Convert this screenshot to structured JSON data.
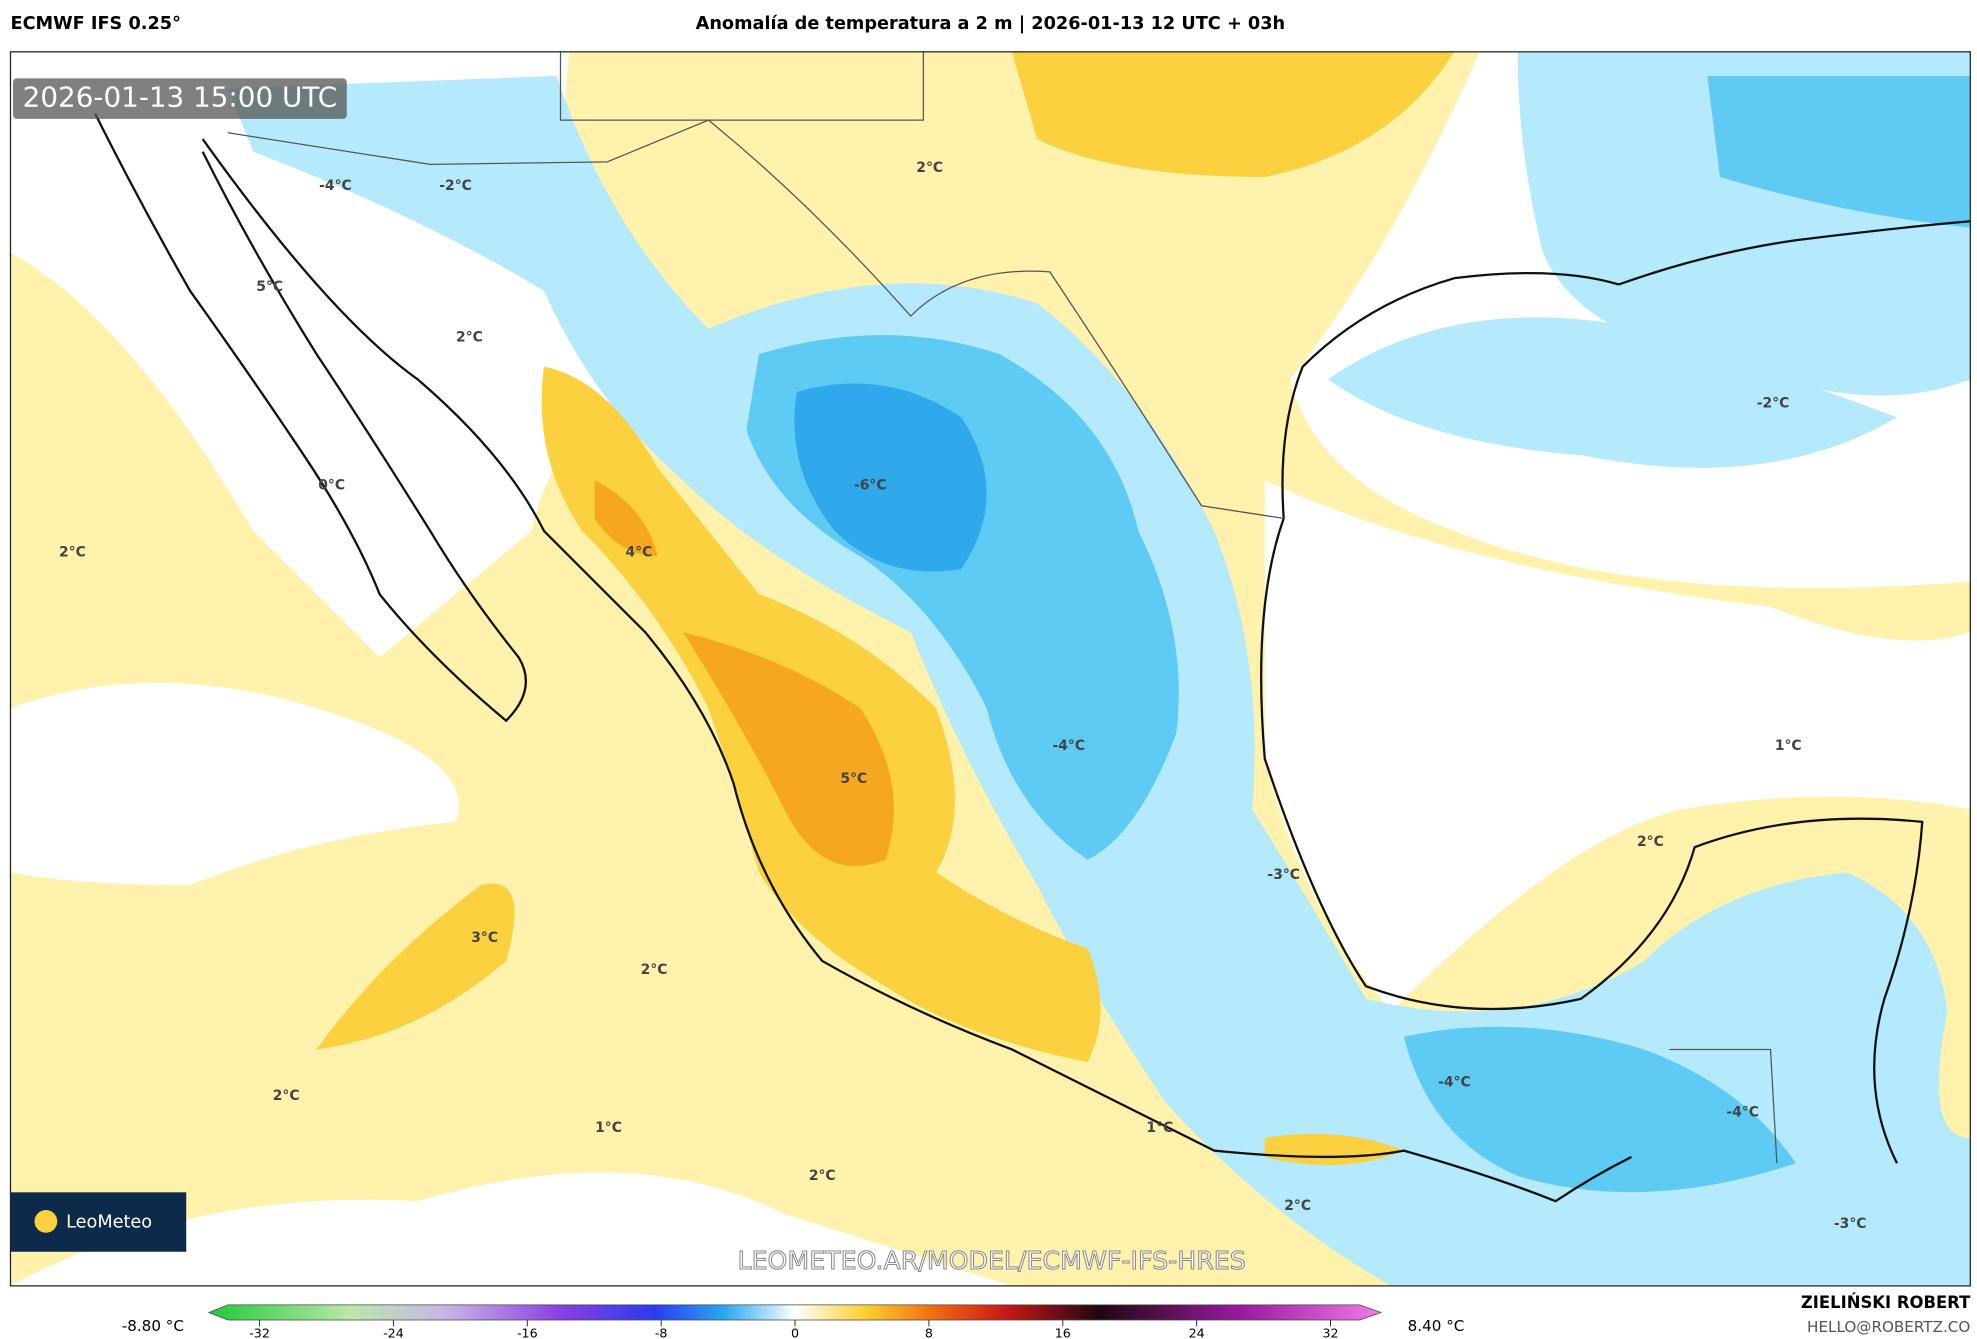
{
  "header": {
    "model": "ECMWF IFS 0.25°",
    "title": "Anomalía de temperatura a 2 m | 2026-01-13 12 UTC + 03h"
  },
  "map": {
    "timestamp": "2026-01-13 15:00 UTC",
    "labels": [
      "-4°C",
      "-2°C",
      "5°C",
      "2°C",
      "2°C",
      "0°C",
      "2°C",
      "4°C",
      "-6°C",
      "-2°C",
      "1°C",
      "-4°C",
      "5°C",
      "2°C",
      "-3°C",
      "3°C",
      "2°C",
      "2°C",
      "1°C",
      "-4°C",
      "-4°C",
      "1°C",
      "2°C",
      "2°C",
      "-3°C"
    ],
    "logo": "LeoMeteo",
    "watermark": "LEOMETEO.AR/MODEL/ECMWF-IFS-HRES"
  },
  "colorbar": {
    "min_label": "-8.80 °C",
    "max_label": "8.40 °C",
    "ticks": [
      -32,
      -24,
      -16,
      -8,
      0,
      8,
      16,
      24,
      32
    ]
  },
  "footer": {
    "author": "ZIELIŃSKI ROBERT",
    "email": "HELLO@ROBERTZ.CO"
  }
}
